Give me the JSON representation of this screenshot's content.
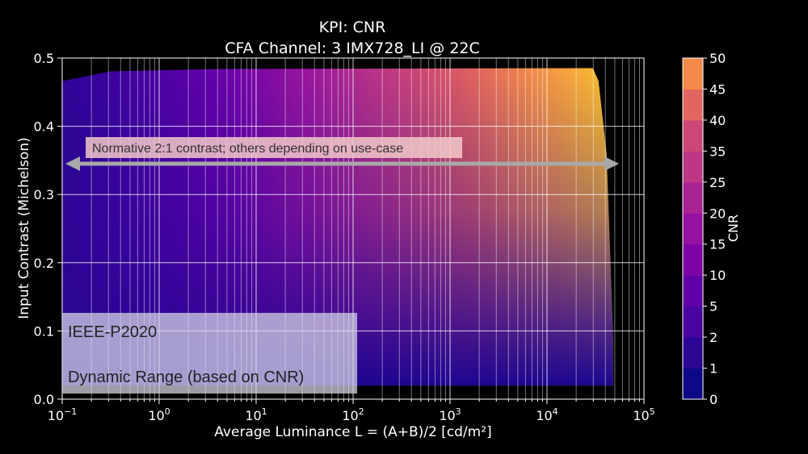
{
  "chart_data": {
    "type": "heatmap",
    "title": "KPI: CNR",
    "subtitle": "CFA Channel: 3 IMX728_LI @ 22C",
    "xlabel": "Average Luminance L = (A+B)/2 [cd/m²]",
    "ylabel": "Input Contrast (Michelson)",
    "x_scale": "log",
    "xlim": [
      0.1,
      100000
    ],
    "ylim": [
      0.0,
      0.5
    ],
    "grid": true,
    "x_ticks": [
      {
        "value": 0.1,
        "base": "10",
        "exp": "−1"
      },
      {
        "value": 1,
        "base": "10",
        "exp": "0"
      },
      {
        "value": 10,
        "base": "10",
        "exp": "1"
      },
      {
        "value": 100,
        "base": "10",
        "exp": "2"
      },
      {
        "value": 1000,
        "base": "10",
        "exp": "3"
      },
      {
        "value": 10000,
        "base": "10",
        "exp": "4"
      },
      {
        "value": 100000,
        "base": "10",
        "exp": "5"
      }
    ],
    "y_ticks": [
      {
        "value": 0.0,
        "label": "0.0"
      },
      {
        "value": 0.1,
        "label": "0.1"
      },
      {
        "value": 0.2,
        "label": "0.2"
      },
      {
        "value": 0.3,
        "label": "0.3"
      },
      {
        "value": 0.4,
        "label": "0.4"
      },
      {
        "value": 0.5,
        "label": "0.5"
      }
    ],
    "colorbar": {
      "label": "CNR",
      "levels": [
        0,
        1,
        2,
        5,
        10,
        15,
        20,
        25,
        35,
        40,
        45,
        50
      ],
      "tick_labels": [
        "0",
        "1",
        "2",
        "5",
        "10",
        "15",
        "20",
        "25",
        "35",
        "40",
        "45",
        "50"
      ],
      "colors": [
        "#0d0887",
        "#2c0594",
        "#4903a0",
        "#6200a7",
        "#7d03a8",
        "#9511a1",
        "#aa2395",
        "#bd3786",
        "#cc4778",
        "#e26561",
        "#f48849",
        "#fcce25"
      ]
    },
    "data_extent": {
      "x_min": 0.1,
      "x_max": 48000,
      "y_min": 0.02,
      "y_max": 0.49
    },
    "annotations": [
      {
        "id": "contrast-arrow",
        "text": "Normative 2:1 contrast; others depending on use-case",
        "y": 0.345,
        "x_from": 0.1,
        "x_to": 48000
      },
      {
        "id": "ieee-box",
        "lines": [
          "IEEE-P2020",
          "Dynamic Range (based on CNR)"
        ]
      }
    ]
  }
}
